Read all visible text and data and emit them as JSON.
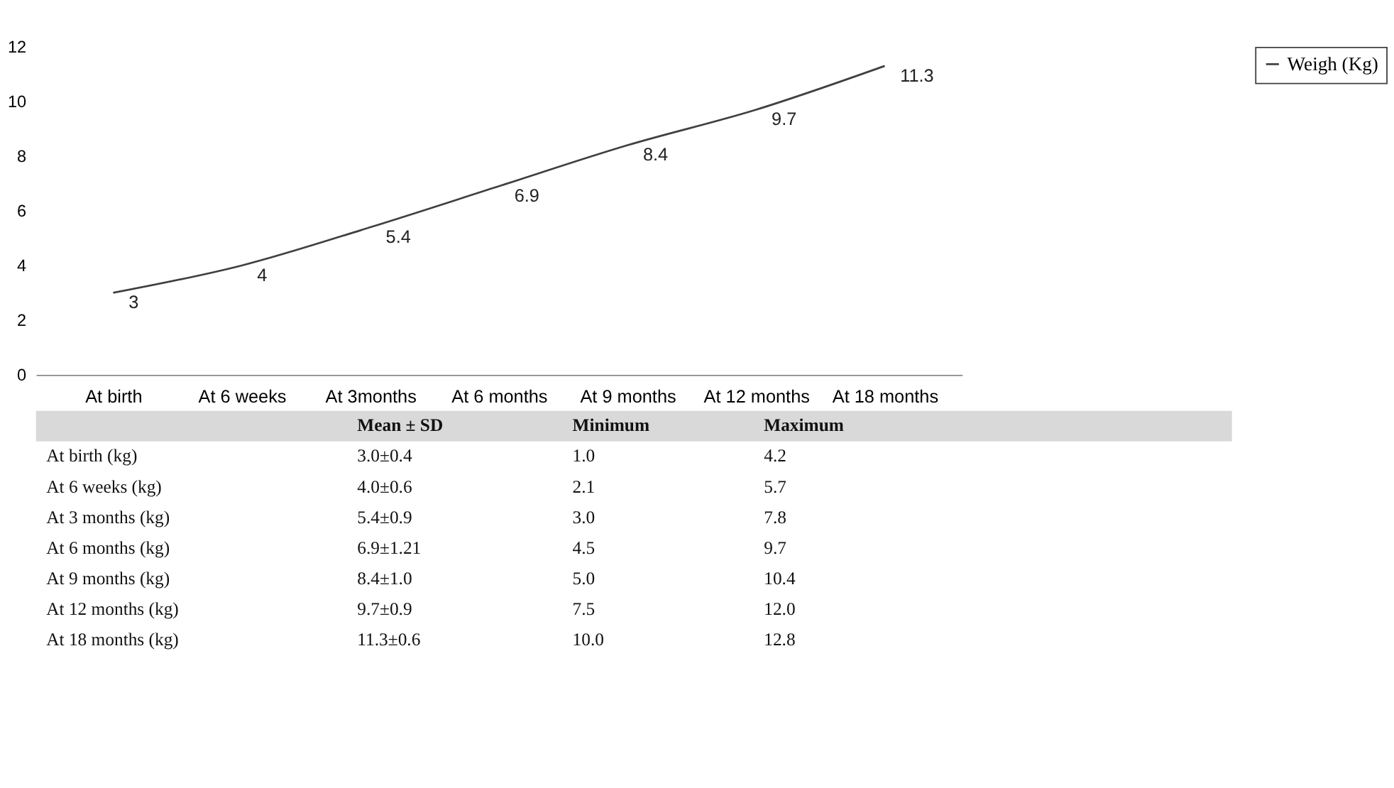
{
  "chart_data": [
    {
      "type": "line",
      "categories": [
        "At birth",
        "At  6 weeks",
        "At 3months",
        "At 6 months",
        "At 9 months",
        "At 12 months",
        "At 18 months"
      ],
      "series": [
        {
          "name": "Weigh (Kg)",
          "color": "#404040",
          "values": [
            3,
            4,
            5.4,
            6.9,
            8.4,
            9.7,
            11.3
          ]
        }
      ],
      "ylim": [
        0,
        12
      ],
      "yticks": [
        0,
        2,
        4,
        6,
        8,
        10,
        12
      ],
      "data_labels": true,
      "legend": "right",
      "grid": false,
      "marker": "none",
      "line_style": "solid"
    },
    {
      "type": "other",
      "categories": [
        null,
        "Mean ± SD",
        "Minimum",
        "Maximum"
      ],
      "y_categories": [
        "At birth (kg)",
        "At 6 weeks (kg)",
        "At 3 months (kg)",
        "At 6 months (kg)",
        "At 9 months (kg)",
        "At 12 months (kg)",
        "At 18 months (kg)"
      ],
      "cell_labels": [
        [
          "3.0±0.4",
          "1.0",
          "4.2"
        ],
        [
          "4.0±0.6",
          "2.1",
          "5.7"
        ],
        [
          "5.4±0.9",
          "3.0",
          "7.8"
        ],
        [
          "6.9±1.21",
          "4.5",
          "9.7"
        ],
        [
          "8.4±1.0",
          "5.0",
          "10.4"
        ],
        [
          "9.7±0.9",
          "7.5",
          "12.0"
        ],
        [
          "11.3±0.6",
          "10.0",
          "12.8"
        ]
      ]
    }
  ]
}
